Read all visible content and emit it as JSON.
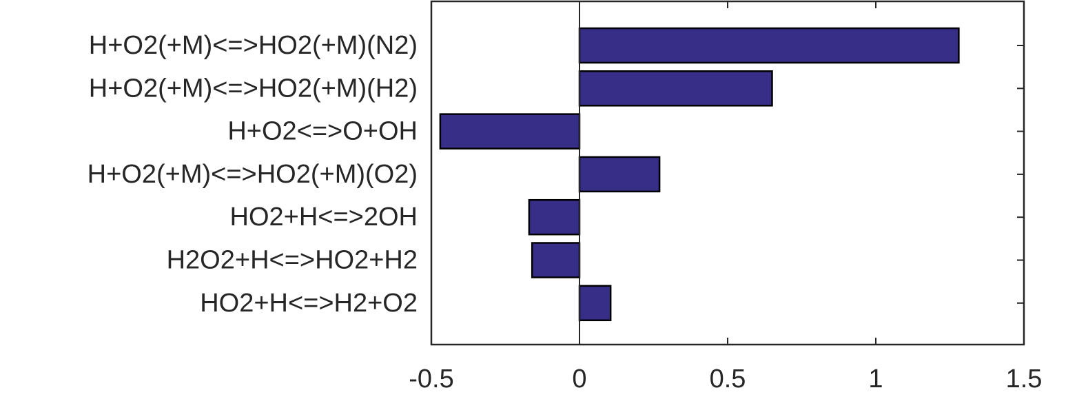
{
  "chart_data": {
    "type": "bar",
    "orientation": "horizontal",
    "title": "",
    "xlabel": "",
    "ylabel": "",
    "categories": [
      "H+O2(+M)<=>HO2(+M)(N2)",
      "H+O2(+M)<=>HO2(+M)(H2)",
      "H+O2<=>O+OH",
      "H+O2(+M)<=>HO2(+M)(O2)",
      "HO2+H<=>2OH",
      "H2O2+H<=>HO2+H2",
      "HO2+H<=>H2+O2"
    ],
    "values": [
      1.28,
      0.65,
      -0.47,
      0.27,
      -0.17,
      -0.16,
      0.105
    ],
    "xlim": [
      -0.5,
      1.5
    ],
    "xticks": [
      -0.5,
      0,
      0.5,
      1,
      1.5
    ],
    "xtick_labels": [
      "-0.5",
      "0",
      "0.5",
      "1",
      "1.5"
    ],
    "grid": false,
    "legend": "none",
    "bar_color": "#372e88",
    "edge_color": "#000000"
  }
}
